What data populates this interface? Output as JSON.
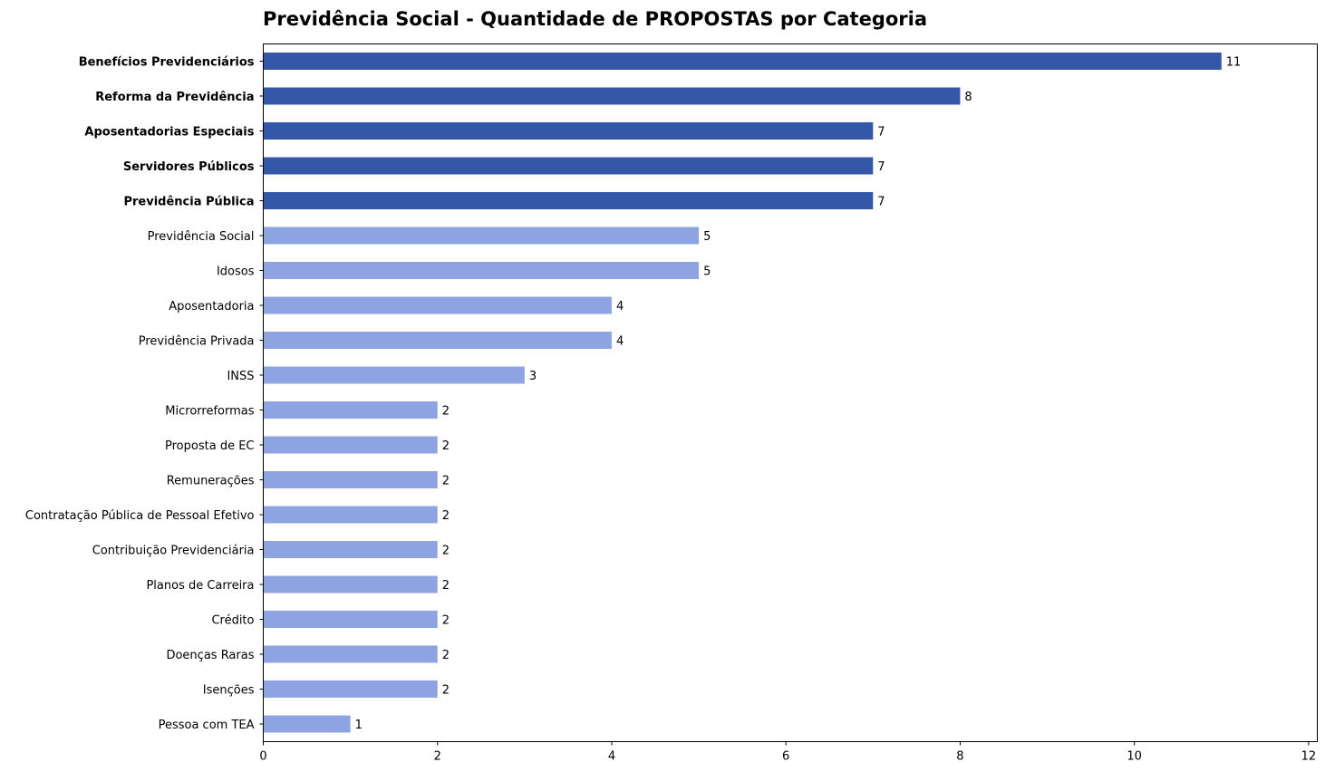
{
  "chart_data": {
    "type": "bar",
    "orientation": "horizontal",
    "title": "Previdência Social - Quantidade de PROPOSTAS por Categoria",
    "xlabel": "",
    "ylabel": "",
    "xlim": [
      0,
      12.1
    ],
    "xticks": [
      0,
      2,
      4,
      6,
      8,
      10,
      12
    ],
    "grid": false,
    "colors": {
      "highlight": "#3557a8",
      "normal": "#8ea4e2"
    },
    "categories": [
      "Benefícios Previdenciários",
      "Reforma da Previdência",
      "Aposentadorias Especiais",
      "Servidores Públicos",
      "Previdência Pública",
      "Previdência Social",
      "Idosos",
      "Aposentadoria",
      "Previdência Privada",
      "INSS",
      "Microrreformas",
      "Proposta de EC",
      "Remunerações",
      "Contratação Pública de Pessoal Efetivo",
      "Contribuição Previdenciária",
      "Planos de Carreira",
      "Crédito",
      "Doenças Raras",
      "Isenções",
      "Pessoa com TEA"
    ],
    "values": [
      11,
      8,
      7,
      7,
      7,
      5,
      5,
      4,
      4,
      3,
      2,
      2,
      2,
      2,
      2,
      2,
      2,
      2,
      2,
      1
    ],
    "highlighted": [
      true,
      true,
      true,
      true,
      true,
      false,
      false,
      false,
      false,
      false,
      false,
      false,
      false,
      false,
      false,
      false,
      false,
      false,
      false,
      false
    ]
  }
}
